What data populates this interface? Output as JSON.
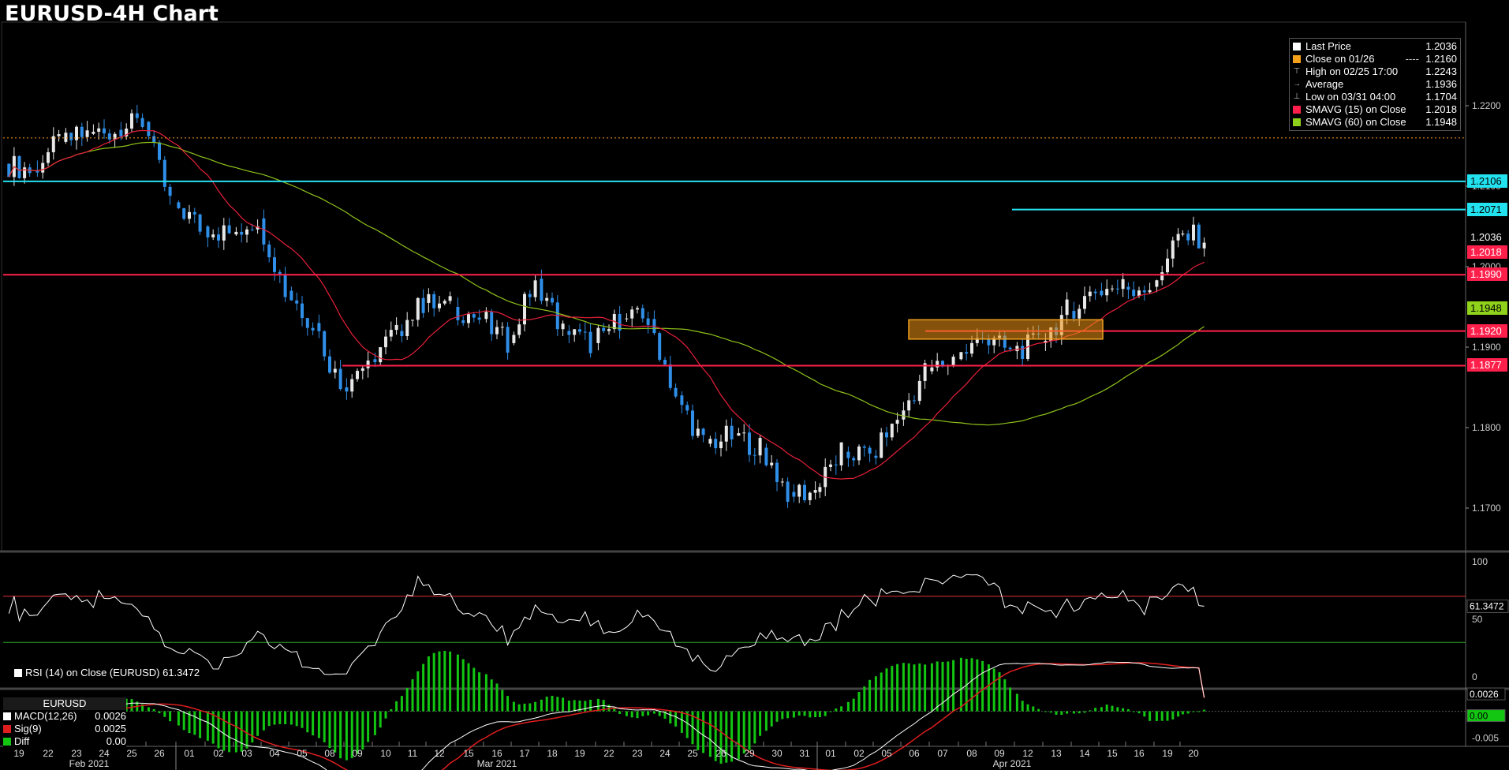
{
  "header": {
    "title": "EURUSD-4H Chart"
  },
  "colors": {
    "background": "#000000",
    "up_candle": "#e8e8e8",
    "down_candle": "#2f8fe8",
    "sma15": "#e8203a",
    "sma60": "#8fc21b",
    "support_resistance": "#ff1f4b",
    "cyan_line": "#23e2f0",
    "close_line": "#e08a1e",
    "rsi_line": "#ffffff",
    "rsi_upper": "#e0303a",
    "rsi_lower": "#29a329",
    "macd_line": "#ffffff",
    "signal_line": "#e01e1e",
    "diff_bar": "#12c612"
  },
  "legend": {
    "items": [
      {
        "icon": "square-white",
        "label": "Last Price",
        "value": "1.2036",
        "color": "#ffffff"
      },
      {
        "icon": "square-orange",
        "label": "Close on 01/26",
        "style": "----",
        "value": "1.2160",
        "color": "#f5a01a"
      },
      {
        "icon": "high-marker",
        "label": "High on 02/25 17:00",
        "value": "1.2243",
        "color": ""
      },
      {
        "icon": "average-marker",
        "label": "Average",
        "value": "1.1936",
        "color": ""
      },
      {
        "icon": "low-marker",
        "label": "Low on 03/31 04:00",
        "value": "1.1704",
        "color": ""
      },
      {
        "icon": "square-red",
        "label": "SMAVG (15)  on Close",
        "value": "1.2018",
        "color": "#ff1f4b"
      },
      {
        "icon": "square-green",
        "label": "SMAVG (60)  on Close",
        "value": "1.1948",
        "color": "#8fd11b"
      }
    ]
  },
  "price_axis": {
    "ticks": [
      "1.2200",
      "1.2100",
      "1.2000",
      "1.1900",
      "1.1800",
      "1.1700"
    ],
    "tags": [
      {
        "text": "1.2106",
        "bg": "#23e2f0",
        "fg": "#000000",
        "price": 1.2106
      },
      {
        "text": "1.2071",
        "bg": "#23e2f0",
        "fg": "#000000",
        "price": 1.2071
      },
      {
        "text": "1.2036",
        "bg": "#000000",
        "fg": "#ffffff",
        "price": 1.2036
      },
      {
        "text": "1.2018",
        "bg": "#ff1f4b",
        "fg": "#ffffff",
        "price": 1.2018
      },
      {
        "text": "1.1990",
        "bg": "#ff1f4b",
        "fg": "#ffffff",
        "price": 1.199
      },
      {
        "text": "1.1948",
        "bg": "#8fd11b",
        "fg": "#000000",
        "price": 1.1948
      },
      {
        "text": "1.1920",
        "bg": "#ff1f4b",
        "fg": "#ffffff",
        "price": 1.192
      },
      {
        "text": "1.1877",
        "bg": "#ff1f4b",
        "fg": "#ffffff",
        "price": 1.1877
      }
    ]
  },
  "rsi_panel": {
    "legend_label": "RSI (14)  on Close (EURUSD) 61.3472",
    "ticks": [
      "100",
      "50",
      "0"
    ],
    "value_tag": "61.3472"
  },
  "macd_panel": {
    "header": "EURUSD",
    "legend": [
      {
        "label": "MACD(12,26)",
        "value": "0.0026",
        "color": "#ffffff"
      },
      {
        "label": "Sig(9)",
        "value": "0.0025",
        "color": "#e01e1e"
      },
      {
        "label": "Diff",
        "value": "0.00",
        "color": "#12c612"
      }
    ],
    "ticks": [
      "-0.005"
    ],
    "tags": [
      {
        "text": "0.0026",
        "bg": "#000000",
        "fg": "#ffffff"
      },
      {
        "text": "0.00",
        "bg": "#12c612",
        "fg": "#000000"
      }
    ]
  },
  "x_axis": {
    "days": [
      "19",
      "22",
      "23",
      "24",
      "25",
      "26",
      "01",
      "02",
      "03",
      "04",
      "05",
      "08",
      "09",
      "10",
      "11",
      "12",
      "15",
      "16",
      "17",
      "18",
      "19",
      "22",
      "23",
      "24",
      "25",
      "26",
      "29",
      "30",
      "31",
      "01",
      "02",
      "05",
      "06",
      "07",
      "08",
      "09",
      "12",
      "13",
      "14",
      "15",
      "16",
      "19",
      "20"
    ],
    "months": [
      {
        "label": "Feb 2021",
        "start": 0,
        "end": 5
      },
      {
        "label": "Mar 2021",
        "start": 6,
        "end": 28
      },
      {
        "label": "Apr 2021",
        "start": 29,
        "end": 42
      }
    ]
  },
  "chart_data": {
    "type": "candlestick",
    "title": "EURUSD-4H Chart",
    "ylim": [
      1.165,
      1.231
    ],
    "x": [
      "19",
      "22",
      "23",
      "24",
      "25",
      "26",
      "01",
      "02",
      "03",
      "04",
      "05",
      "08",
      "09",
      "10",
      "11",
      "12",
      "15",
      "16",
      "17",
      "18",
      "19",
      "22",
      "23",
      "24",
      "25",
      "26",
      "29",
      "30",
      "31",
      "01",
      "02",
      "05",
      "06",
      "07",
      "08",
      "09",
      "12",
      "13",
      "14",
      "15",
      "16",
      "19",
      "20"
    ],
    "daily_close": [
      1.212,
      1.2155,
      1.2165,
      1.217,
      1.218,
      1.208,
      1.205,
      1.204,
      1.206,
      1.197,
      1.193,
      1.185,
      1.1885,
      1.192,
      1.1955,
      1.195,
      1.1935,
      1.1905,
      1.1985,
      1.192,
      1.1905,
      1.1935,
      1.1935,
      1.184,
      1.178,
      1.179,
      1.1775,
      1.172,
      1.172,
      1.177,
      1.1765,
      1.181,
      1.187,
      1.1885,
      1.191,
      1.1895,
      1.1905,
      1.1945,
      1.197,
      1.1975,
      1.1975,
      1.204,
      1.2036
    ],
    "lines": {
      "close_on_01_26": 1.216,
      "cyan_long": 1.2106,
      "cyan_short": 1.2071,
      "red_1990": 1.199,
      "red_1920": 1.192,
      "red_1877": 1.1877
    },
    "sma15_last": 1.2018,
    "sma60_last": 1.1948,
    "rsi_last": 61.3472,
    "rsi_bands": [
      70,
      30
    ],
    "macd_last": 0.0026,
    "signal_last": 0.0025,
    "rsi_ylim": [
      0,
      100
    ],
    "macd_ylim": [
      -0.006,
      0.0035
    ]
  }
}
